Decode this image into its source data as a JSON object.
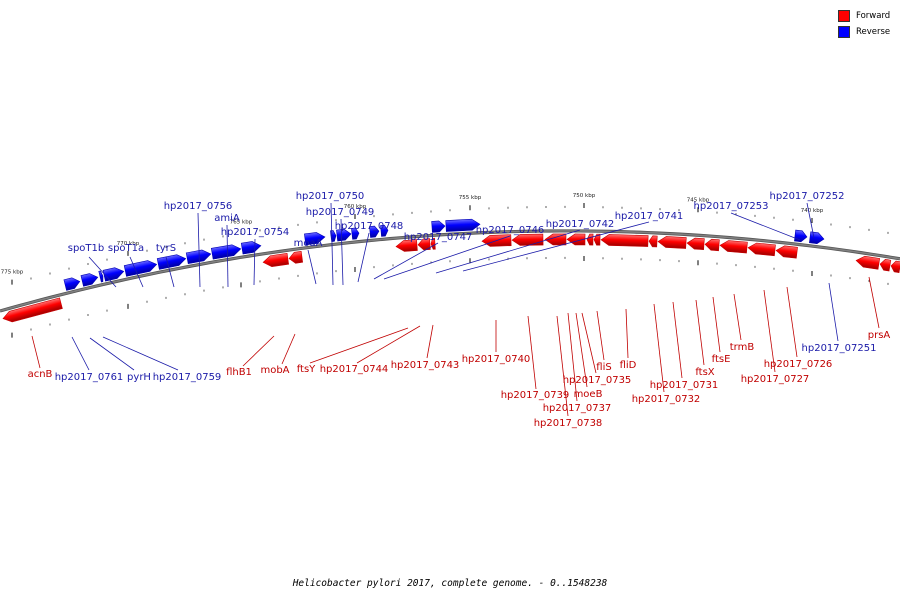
{
  "colors": {
    "forward": "#ff0000",
    "forward_shade": "#c80000",
    "reverse": "#0000ff",
    "reverse_shade": "#0000b4",
    "backbone": "#808080",
    "label_forward": "#c00000",
    "label_reverse": "#1a1aa8"
  },
  "legend": [
    {
      "label": "Forward",
      "color": "#ff0000"
    },
    {
      "label": "Reverse",
      "color": "#0000ff"
    }
  ],
  "caption": "Helicobacter pylori 2017, complete genome. - 0..1548238",
  "ticks": [
    "775 kbp",
    "770 kbp",
    "765 kbp",
    "760 kbp",
    "755 kbp",
    "750 kbp",
    "745 kbp",
    "740 kbp"
  ],
  "genes": [
    {
      "label": "acnB",
      "strand": "forward"
    },
    {
      "label": "hp2017_0761",
      "strand": "reverse"
    },
    {
      "label": "spoT1b",
      "strand": "reverse"
    },
    {
      "label": "pyrH",
      "strand": "reverse"
    },
    {
      "label": "spoT1a",
      "strand": "reverse"
    },
    {
      "label": "tyrS",
      "strand": "reverse"
    },
    {
      "label": "hp2017_0759",
      "strand": "reverse"
    },
    {
      "label": "hp2017_0756",
      "strand": "reverse"
    },
    {
      "label": "amiA",
      "strand": "reverse"
    },
    {
      "label": "hp2017_0754",
      "strand": "reverse"
    },
    {
      "label": "flhB1",
      "strand": "forward"
    },
    {
      "label": "mobA",
      "strand": "forward"
    },
    {
      "label": "moaA",
      "strand": "reverse"
    },
    {
      "label": "hp2017_0750",
      "strand": "reverse"
    },
    {
      "label": "hp2017_0749",
      "strand": "reverse"
    },
    {
      "label": "ftsY",
      "strand": "forward"
    },
    {
      "label": "hp2017_0748",
      "strand": "reverse"
    },
    {
      "label": "hp2017_0744",
      "strand": "forward"
    },
    {
      "label": "hp2017_0747",
      "strand": "reverse"
    },
    {
      "label": "hp2017_0743",
      "strand": "forward"
    },
    {
      "label": "hp2017_0746",
      "strand": "reverse"
    },
    {
      "label": "hp2017_0742",
      "strand": "reverse"
    },
    {
      "label": "hp2017_0740",
      "strand": "forward"
    },
    {
      "label": "hp2017_0741",
      "strand": "reverse"
    },
    {
      "label": "hp2017_0739",
      "strand": "forward"
    },
    {
      "label": "hp2017_0738",
      "strand": "forward"
    },
    {
      "label": "hp2017_0737",
      "strand": "forward"
    },
    {
      "label": "moeB",
      "strand": "forward"
    },
    {
      "label": "hp2017_0735",
      "strand": "forward"
    },
    {
      "label": "fliS",
      "strand": "forward"
    },
    {
      "label": "fliD",
      "strand": "forward"
    },
    {
      "label": "hp2017_0732",
      "strand": "forward"
    },
    {
      "label": "hp2017_0731",
      "strand": "forward"
    },
    {
      "label": "ftsX",
      "strand": "forward"
    },
    {
      "label": "ftsE",
      "strand": "forward"
    },
    {
      "label": "trmB",
      "strand": "forward"
    },
    {
      "label": "hp2017_0727",
      "strand": "forward"
    },
    {
      "label": "hp2017_0726",
      "strand": "forward"
    },
    {
      "label": "hp2017_07253",
      "strand": "reverse"
    },
    {
      "label": "hp2017_07252",
      "strand": "reverse"
    },
    {
      "label": "hp2017_07251",
      "strand": "reverse"
    },
    {
      "label": "prsA",
      "strand": "forward"
    }
  ]
}
